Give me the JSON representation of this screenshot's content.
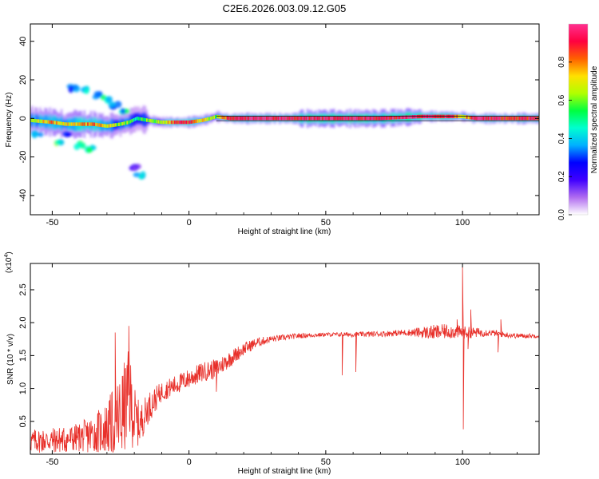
{
  "title": "C2E6.2026.003.09.12.G05",
  "chart_data": [
    {
      "type": "heatmap",
      "xlabel": "Height of straight line (km)",
      "ylabel": "Frequency (Hz)",
      "xlim": [
        -58,
        128
      ],
      "ylim": [
        -50,
        49
      ],
      "xticks": [
        -50,
        0,
        50,
        100
      ],
      "yticks": [
        -40,
        -20,
        0,
        20,
        40
      ],
      "colorbar": {
        "label": "Normalized spectral amplitude",
        "range": [
          0,
          1
        ],
        "ticks": [
          "0.0",
          "0.2",
          "0.4",
          "0.6",
          "0.8"
        ],
        "stops": [
          "#ffffff",
          "#b06cf0",
          "#4000ff",
          "#0000ff",
          "#00b0ff",
          "#00ffd0",
          "#00ff40",
          "#b0ff00",
          "#ffe000",
          "#ff6000",
          "#ff0040",
          "#ff3090"
        ]
      },
      "main_band": {
        "description_points": [
          [
            -58,
            -1,
            0.6
          ],
          [
            -50,
            -2,
            0.8
          ],
          [
            -45,
            -3,
            0.7
          ],
          [
            -40,
            -3,
            0.8
          ],
          [
            -35,
            -3,
            0.8
          ],
          [
            -30,
            -4,
            0.7
          ],
          [
            -25,
            -3,
            0.6
          ],
          [
            -22,
            -2,
            0.6
          ],
          [
            -19,
            0,
            0.5
          ],
          [
            -15,
            -1,
            0.6
          ],
          [
            -10,
            -2,
            0.6
          ],
          [
            -5,
            -2,
            0.9
          ],
          [
            0,
            -2,
            0.9
          ],
          [
            5,
            -1,
            0.7
          ],
          [
            8,
            0,
            0.6
          ],
          [
            10,
            1,
            0.6
          ],
          [
            15,
            0,
            0.95
          ],
          [
            30,
            0,
            0.95
          ],
          [
            50,
            0,
            0.95
          ],
          [
            70,
            0,
            0.9
          ],
          [
            85,
            1,
            0.95
          ],
          [
            95,
            1,
            0.95
          ],
          [
            100,
            1,
            0.7
          ],
          [
            105,
            0,
            0.95
          ],
          [
            115,
            0,
            0.9
          ],
          [
            128,
            0,
            0.9
          ]
        ]
      },
      "side_features": [
        [
          -42,
          16,
          0.4
        ],
        [
          -38,
          15,
          0.45
        ],
        [
          -34,
          12,
          0.4
        ],
        [
          -30,
          10,
          0.5
        ],
        [
          -27,
          7,
          0.4
        ],
        [
          -24,
          4,
          0.5
        ],
        [
          -48,
          -12,
          0.6
        ],
        [
          -40,
          -14,
          0.6
        ],
        [
          -36,
          -16,
          0.5
        ],
        [
          -18,
          -30,
          0.4
        ],
        [
          -20,
          -25,
          0.2
        ],
        [
          -55,
          -8,
          0.4
        ],
        [
          -45,
          -8,
          0.3
        ]
      ]
    },
    {
      "type": "line",
      "xlabel": "Height of straight line (km)",
      "ylabel": "SNR (10 * v/v)",
      "y_multiplier_label": "(x10",
      "y_multiplier_exp": "4",
      "xlim": [
        -58,
        128
      ],
      "ylim": [
        0,
        2.9
      ],
      "xticks": [
        -50,
        0,
        50,
        100
      ],
      "yticks": [
        0.5,
        1.0,
        1.5,
        2.0,
        2.5
      ],
      "series": [
        {
          "name": "SNR",
          "color": "#e8302a",
          "baseline": [
            [
              -58,
              0.2
            ],
            [
              -45,
              0.22
            ],
            [
              -35,
              0.3
            ],
            [
              -30,
              0.4
            ],
            [
              -25,
              0.55
            ],
            [
              -22,
              0.9
            ],
            [
              -20,
              0.55
            ],
            [
              -18,
              0.45
            ],
            [
              -15,
              0.7
            ],
            [
              -10,
              0.95
            ],
            [
              -5,
              1.05
            ],
            [
              0,
              1.15
            ],
            [
              5,
              1.25
            ],
            [
              10,
              1.3
            ],
            [
              15,
              1.45
            ],
            [
              20,
              1.6
            ],
            [
              25,
              1.7
            ],
            [
              30,
              1.75
            ],
            [
              40,
              1.8
            ],
            [
              50,
              1.82
            ],
            [
              60,
              1.82
            ],
            [
              70,
              1.83
            ],
            [
              80,
              1.85
            ],
            [
              90,
              1.85
            ],
            [
              95,
              1.87
            ],
            [
              100,
              1.85
            ],
            [
              105,
              1.85
            ],
            [
              110,
              1.85
            ],
            [
              115,
              1.82
            ],
            [
              120,
              1.8
            ],
            [
              128,
              1.8
            ]
          ],
          "noise": [
            [
              -58,
              0.18
            ],
            [
              -40,
              0.22
            ],
            [
              -30,
              0.4
            ],
            [
              -25,
              0.7
            ],
            [
              -22,
              0.7
            ],
            [
              -18,
              0.3
            ],
            [
              -10,
              0.15
            ],
            [
              0,
              0.15
            ],
            [
              10,
              0.15
            ],
            [
              20,
              0.1
            ],
            [
              30,
              0.05
            ],
            [
              50,
              0.03
            ],
            [
              80,
              0.05
            ],
            [
              90,
              0.12
            ],
            [
              100,
              0.1
            ],
            [
              110,
              0.05
            ],
            [
              128,
              0.03
            ]
          ],
          "spikes": [
            [
              56,
              1.2
            ],
            [
              61,
              1.25
            ],
            [
              100,
              2.85
            ],
            [
              100.3,
              0.38
            ],
            [
              98,
              2.05
            ],
            [
              102,
              1.6
            ],
            [
              103,
              2.2
            ],
            [
              113,
              1.55
            ],
            [
              114,
              2.05
            ],
            [
              10,
              0.95
            ],
            [
              -22,
              1.95
            ],
            [
              -27,
              1.85
            ]
          ]
        }
      ]
    }
  ]
}
